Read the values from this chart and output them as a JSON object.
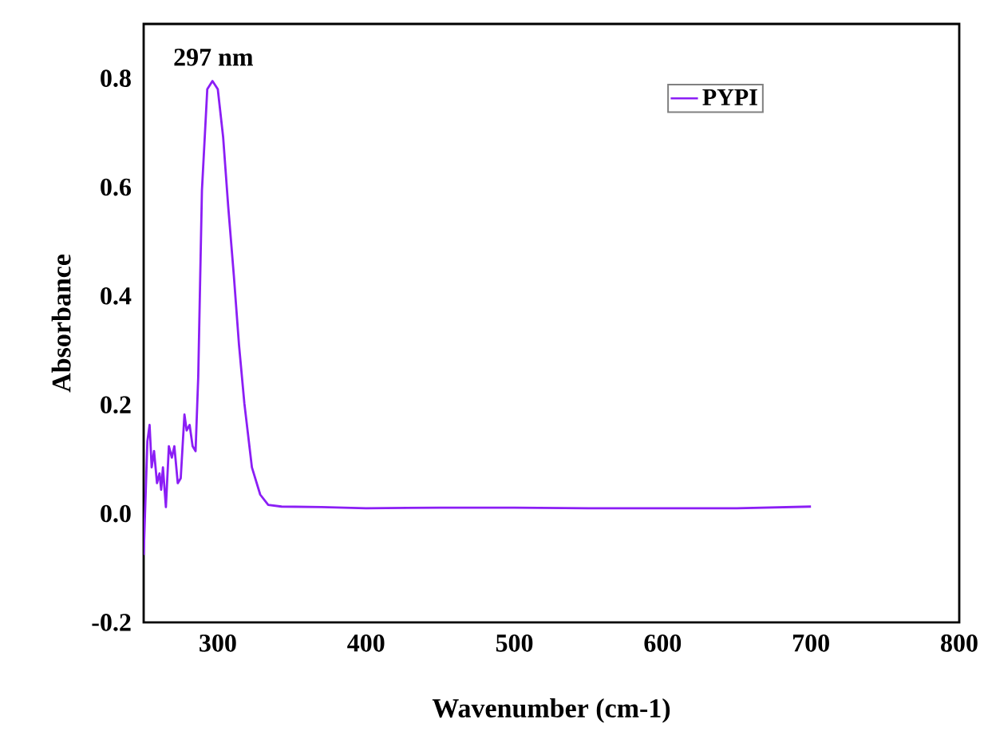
{
  "chart_data": {
    "type": "line",
    "xlabel": "Wavenumber (cm-1)",
    "ylabel": "Absorbance",
    "annotations": [
      {
        "text": "297 nm",
        "x": 297,
        "y": 0.795
      }
    ],
    "series": [
      {
        "name": "PYPI",
        "color": "#8b1ef5",
        "x": [
          250,
          252.5,
          254,
          255.4,
          257,
          259,
          260.7,
          261.8,
          263,
          265,
          267,
          269,
          270.7,
          273,
          275,
          277.5,
          279,
          281,
          283,
          285,
          286.8,
          289.3,
          292.9,
          296.4,
          300,
          303.6,
          307,
          310.8,
          314.3,
          317.9,
          323,
          328.6,
          334,
          343,
          370,
          400,
          450,
          500,
          550,
          600,
          650,
          700
        ],
        "values": [
          -0.076,
          0.133,
          0.163,
          0.085,
          0.115,
          0.056,
          0.074,
          0.044,
          0.085,
          0.012,
          0.124,
          0.103,
          0.124,
          0.056,
          0.065,
          0.182,
          0.153,
          0.163,
          0.124,
          0.115,
          0.251,
          0.594,
          0.78,
          0.795,
          0.78,
          0.692,
          0.565,
          0.438,
          0.31,
          0.203,
          0.085,
          0.035,
          0.016,
          0.013,
          0.012,
          0.01,
          0.011,
          0.011,
          0.01,
          0.01,
          0.01,
          0.013
        ]
      }
    ],
    "xlim": [
      250,
      800
    ],
    "xticks": [
      300,
      400,
      500,
      600,
      700,
      800
    ],
    "ylim": [
      -0.2,
      0.9
    ],
    "yticks": [
      {
        "value": -0.2,
        "label": "-0.2"
      },
      {
        "value": 0.0,
        "label": "0.0"
      },
      {
        "value": 0.2,
        "label": "0.2"
      },
      {
        "value": 0.4,
        "label": "0.4"
      },
      {
        "value": 0.6,
        "label": "0.6"
      },
      {
        "value": 0.8,
        "label": "0.8"
      }
    ],
    "grid": false,
    "legend": "top right",
    "marker": "none",
    "line_style": "solid"
  }
}
